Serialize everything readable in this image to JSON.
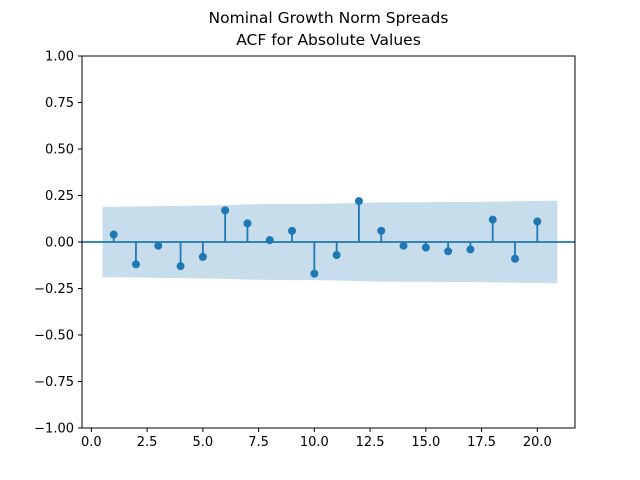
{
  "chart_data": {
    "type": "scatter",
    "subtype": "acf-stem-plot",
    "title": "Nominal Growth Norm Spreads",
    "subtitle": "ACF for Absolute Values",
    "xlabel": "",
    "ylabel": "",
    "xlim": [
      -0.42,
      21.69
    ],
    "ylim": [
      -1.0,
      1.0
    ],
    "grid": false,
    "legend": null,
    "zero_line_y": 0,
    "lags": [
      1,
      2,
      3,
      4,
      5,
      6,
      7,
      8,
      9,
      10,
      11,
      12,
      13,
      14,
      15,
      16,
      17,
      18,
      19,
      20
    ],
    "acf_values": [
      0.04,
      -0.12,
      -0.02,
      -0.13,
      -0.08,
      0.17,
      0.1,
      0.01,
      0.06,
      -0.17,
      -0.07,
      0.22,
      0.06,
      -0.02,
      -0.03,
      -0.05,
      -0.04,
      0.12,
      -0.09,
      0.11
    ],
    "confidence_band": {
      "x": [
        0.5,
        1,
        2,
        3,
        4,
        5,
        6,
        7,
        8,
        9,
        10,
        11,
        12,
        13,
        14,
        15,
        16,
        17,
        18,
        19,
        20,
        20.9
      ],
      "upper": [
        0.19,
        0.19,
        0.191,
        0.193,
        0.194,
        0.196,
        0.198,
        0.202,
        0.204,
        0.205,
        0.205,
        0.207,
        0.21,
        0.213,
        0.214,
        0.214,
        0.215,
        0.215,
        0.217,
        0.219,
        0.221,
        0.222
      ],
      "lower": [
        -0.19,
        -0.19,
        -0.191,
        -0.193,
        -0.194,
        -0.196,
        -0.198,
        -0.202,
        -0.204,
        -0.205,
        -0.205,
        -0.207,
        -0.21,
        -0.213,
        -0.214,
        -0.214,
        -0.215,
        -0.215,
        -0.217,
        -0.219,
        -0.221,
        -0.222
      ]
    },
    "xticks": {
      "values": [
        0,
        2.5,
        5,
        7.5,
        10,
        12.5,
        15,
        17.5,
        20
      ],
      "labels": [
        "0.0",
        "2.5",
        "5.0",
        "7.5",
        "10.0",
        "12.5",
        "15.0",
        "17.5",
        "20.0"
      ]
    },
    "yticks": {
      "values": [
        1,
        0.75,
        0.5,
        0.25,
        0,
        -0.25,
        -0.5,
        -0.75,
        -1
      ],
      "labels": [
        "1.00",
        "0.75",
        "0.50",
        "0.25",
        "0.00",
        "−0.25",
        "−0.50",
        "−0.75",
        "−1.00"
      ]
    },
    "colors": {
      "accent": "#1f77b4",
      "band_fill": "#1f77b4",
      "band_opacity": 0.25,
      "spine": "#000000",
      "text": "#000000",
      "background": "#ffffff"
    }
  }
}
